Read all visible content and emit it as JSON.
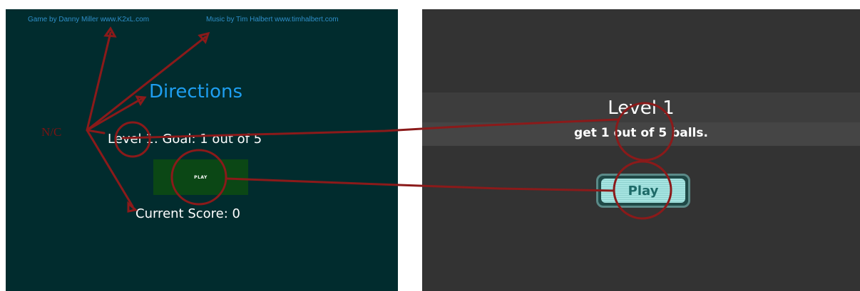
{
  "old_version": {
    "credits": {
      "game": "Game by Danny Miller www.K2xL.com",
      "music": "Music by Tim Halbert www.timhalbert.com"
    },
    "directions_title": "Directions",
    "annotation_label": "N/C",
    "goal_text": "Level 1: Goal: 1 out of 5",
    "play_button": "PLAY",
    "score_text": "Current Score: 0"
  },
  "new_version": {
    "level_title": "Level 1",
    "level_goal": "get 1 out of 5 balls.",
    "play_button": "Play"
  },
  "colors": {
    "old_background": "#012c2e",
    "new_background": "#333333",
    "annotation": "#8b1a1a",
    "title_blue": "#1e9ef0",
    "play_green": "#0b4715",
    "play_teal": "#a6e4e1"
  }
}
